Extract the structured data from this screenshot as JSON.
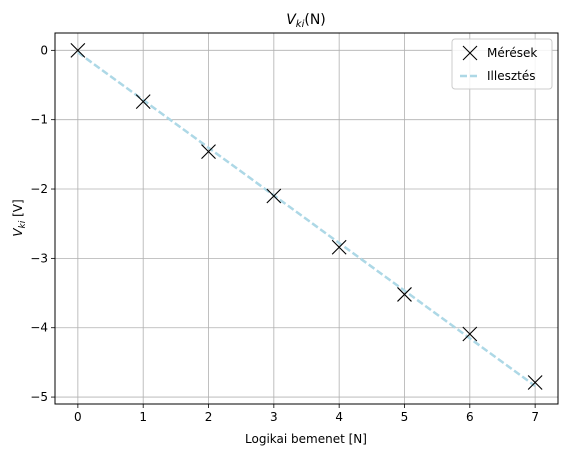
{
  "chart_data": {
    "type": "line",
    "title": "V_ki(N)",
    "title_main": "V",
    "title_sub": "ki",
    "title_tail": "(N)",
    "xlabel": "Logikai bemenet [N]",
    "ylabel_main": "V",
    "ylabel_sub": "ki",
    "ylabel_tail": " [V]",
    "xlim": [
      -0.35,
      7.35
    ],
    "ylim": [
      -5.1,
      0.25
    ],
    "xticks": [
      0,
      1,
      2,
      3,
      4,
      5,
      6,
      7
    ],
    "yticks": [
      0,
      -1,
      -2,
      -3,
      -4,
      -5
    ],
    "xtick_labels": [
      "0",
      "1",
      "2",
      "3",
      "4",
      "5",
      "6",
      "7"
    ],
    "ytick_labels": [
      "0",
      "−1",
      "−2",
      "−3",
      "−4",
      "−5"
    ],
    "grid": true,
    "legend_position": "top-right",
    "series": [
      {
        "name": "Mérések",
        "kind": "markers",
        "marker": "x",
        "color": "#000000",
        "x": [
          0,
          1,
          2,
          3,
          4,
          5,
          6,
          7
        ],
        "y": [
          0.0,
          -0.74,
          -1.46,
          -2.1,
          -2.84,
          -3.52,
          -4.09,
          -4.79
        ]
      },
      {
        "name": "Illesztés",
        "kind": "dashed-line",
        "color": "#add8e6",
        "x": [
          0,
          7
        ],
        "y": [
          -0.03,
          -4.84
        ]
      }
    ]
  }
}
